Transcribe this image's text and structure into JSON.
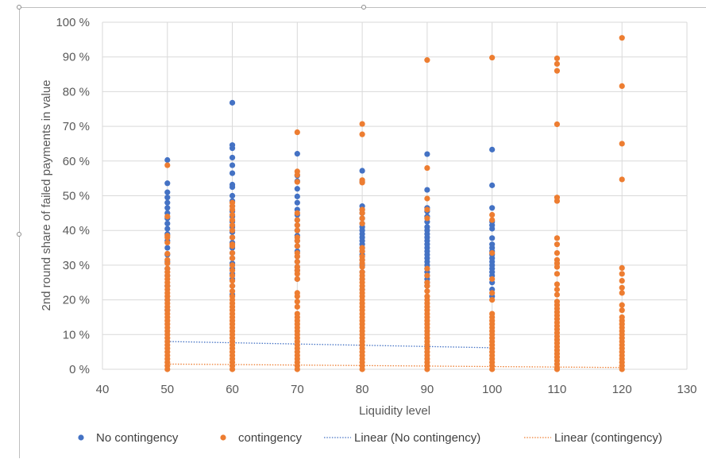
{
  "chart_data": {
    "type": "scatter",
    "title": "",
    "xlabel": "Liquidity level",
    "ylabel": "2nd round share of failed payments in value",
    "xlim": [
      40,
      130
    ],
    "ylim": [
      0,
      100
    ],
    "x_ticks": [
      40,
      50,
      60,
      70,
      80,
      90,
      100,
      110,
      120,
      130
    ],
    "y_ticks": [
      0,
      10,
      20,
      30,
      40,
      50,
      60,
      70,
      80,
      90,
      100
    ],
    "y_tick_labels": [
      "0 %",
      "10 %",
      "20 %",
      "30 %",
      "40 %",
      "50 %",
      "60 %",
      "70 %",
      "80 %",
      "90 %",
      "100 %"
    ],
    "x_tick_labels": [
      "40",
      "50",
      "60",
      "70",
      "80",
      "90",
      "100",
      "110",
      "120",
      "130"
    ],
    "grid": true,
    "legend_position": "bottom",
    "series": [
      {
        "name": "No contingency",
        "color": "#4472c4",
        "marker": "circle",
        "points": [
          {
            "x": 50,
            "y": [
              60.3,
              53.6,
              51.0,
              49.5,
              48.0,
              46.5,
              45.0,
              43.5,
              42.0,
              40.5,
              39.0,
              37.0,
              35.0,
              33.0,
              31.0,
              29.0,
              27.0,
              24.0,
              20.0,
              17.0
            ]
          },
          {
            "x": 60,
            "y": [
              76.8,
              64.6,
              63.7,
              61.0,
              58.8,
              56.5,
              53.2,
              52.5,
              50.0,
              48.5,
              47.0,
              45.5,
              44.0,
              42.5,
              41.0,
              39.5,
              38.0,
              36.5,
              35.0,
              33.5,
              32.0,
              30.5,
              29.0,
              27.5,
              26.0,
              24.0,
              21.5
            ]
          },
          {
            "x": 70,
            "y": [
              62.1,
              55.8,
              54.2,
              52.0,
              49.8,
              48.0,
              46.0,
              44.5,
              43.0,
              41.5,
              40.0,
              38.5,
              37.0,
              35.5,
              34.0,
              32.5,
              31.0,
              29.5,
              28.5,
              26.0
            ]
          },
          {
            "x": 80,
            "y": [
              57.2,
              54.0,
              47.0,
              46.0,
              45.0,
              43.5,
              42.0,
              41.0,
              40.0,
              39.0,
              38.0,
              37.0,
              36.0,
              35.0,
              34.0,
              33.0,
              31.5,
              30.0,
              28.0,
              26.0,
              23.0
            ]
          },
          {
            "x": 90,
            "y": [
              62.0,
              51.7,
              46.5,
              45.5,
              44.0,
              42.5,
              41.0,
              40.0,
              39.0,
              38.0,
              37.0,
              36.0,
              35.0,
              34.0,
              33.0,
              32.0,
              31.0,
              30.0,
              29.0,
              28.0,
              27.0,
              26.0,
              25.0,
              24.0
            ]
          },
          {
            "x": 100,
            "y": [
              63.3,
              53.0,
              46.5,
              42.5,
              41.5,
              40.5,
              37.8,
              36.0,
              35.0,
              34.0,
              33.0,
              32.0,
              31.0,
              30.0,
              29.0,
              28.0,
              27.0,
              25.0,
              23.0,
              21.0
            ]
          }
        ]
      },
      {
        "name": "contingency",
        "color": "#ed7d31",
        "marker": "circle",
        "points": [
          {
            "x": 50,
            "y": [
              58.8,
              44.0,
              38.5,
              38.0,
              36.5,
              33.3,
              31.5,
              30.5,
              29.0,
              28.0,
              27.0,
              26.0,
              25.0,
              24.0,
              23.0,
              22.0,
              21.0,
              20.0,
              19.0,
              18.0,
              17.0,
              16.0,
              15.0,
              14.0,
              13.0,
              12.0,
              11.0,
              10.0,
              9.0,
              8.0,
              7.0,
              6.0,
              5.0,
              4.0,
              3.0,
              2.0,
              1.0,
              0.0
            ]
          },
          {
            "x": 60,
            "y": [
              48.0,
              47.0,
              46.0,
              44.5,
              43.0,
              41.5,
              40.0,
              38.0,
              36.0,
              35.5,
              33.5,
              32.0,
              30.0,
              28.5,
              27.0,
              25.5,
              24.0,
              22.5,
              21.0,
              20.0,
              19.0,
              18.0,
              17.0,
              16.0,
              15.0,
              14.0,
              13.0,
              12.0,
              11.0,
              10.0,
              9.0,
              8.0,
              7.0,
              6.0,
              5.0,
              4.0,
              3.0,
              2.0,
              1.0,
              0.0
            ]
          },
          {
            "x": 70,
            "y": [
              68.3,
              57.0,
              56.0,
              54.0,
              45.0,
              43.0,
              41.5,
              40.0,
              38.0,
              37.0,
              35.5,
              33.5,
              32.5,
              31.0,
              29.5,
              28.5,
              27.5,
              26.0,
              22.0,
              21.0,
              19.5,
              18.0,
              16.0,
              15.0,
              14.0,
              13.0,
              12.0,
              11.0,
              10.0,
              9.0,
              8.0,
              7.0,
              6.0,
              5.0,
              4.0,
              3.0,
              2.0,
              1.0,
              0.0
            ]
          },
          {
            "x": 80,
            "y": [
              70.7,
              67.7,
              54.5,
              53.8,
              46.0,
              45.0,
              43.5,
              42.0,
              35.0,
              34.0,
              32.5,
              31.5,
              30.5,
              29.5,
              28.0,
              27.0,
              26.0,
              25.0,
              24.0,
              23.0,
              22.0,
              21.0,
              20.0,
              19.0,
              18.0,
              17.0,
              16.0,
              15.0,
              14.0,
              13.0,
              12.0,
              11.0,
              10.0,
              9.0,
              8.0,
              7.0,
              6.0,
              5.0,
              4.0,
              3.0,
              2.0,
              1.0,
              0.0
            ]
          },
          {
            "x": 90,
            "y": [
              89.1,
              58.0,
              49.2,
              46.0,
              43.5,
              29.0,
              27.0,
              25.0,
              24.0,
              22.5,
              21.0,
              20.0,
              19.0,
              18.0,
              17.0,
              16.0,
              15.0,
              14.0,
              13.0,
              12.0,
              11.0,
              10.0,
              9.0,
              8.0,
              7.0,
              6.0,
              5.0,
              4.0,
              3.0,
              2.0,
              1.0,
              0.0
            ]
          },
          {
            "x": 100,
            "y": [
              89.8,
              44.5,
              43.0,
              33.5,
              26.0,
              22.0,
              20.0,
              16.0,
              15.0,
              14.0,
              13.0,
              12.0,
              11.0,
              10.0,
              9.0,
              8.0,
              7.0,
              6.0,
              5.0,
              4.0,
              3.0,
              2.0,
              1.0,
              0.0
            ]
          },
          {
            "x": 110,
            "y": [
              89.6,
              88.0,
              86.0,
              70.6,
              49.5,
              48.5,
              37.8,
              36.0,
              33.5,
              31.5,
              30.5,
              29.5,
              27.5,
              24.5,
              23.0,
              21.5,
              19.5,
              18.5,
              17.5,
              16.5,
              15.5,
              14.5,
              13.5,
              12.5,
              11.5,
              10.5,
              9.5,
              8.5,
              7.5,
              6.5,
              5.5,
              4.5,
              3.5,
              2.5,
              1.5,
              0.5,
              0.0
            ]
          },
          {
            "x": 120,
            "y": [
              95.5,
              81.6,
              65.0,
              54.7,
              29.2,
              27.5,
              25.5,
              23.5,
              22.0,
              18.5,
              17.0,
              15.0,
              14.0,
              13.0,
              12.0,
              11.0,
              10.0,
              9.0,
              8.0,
              7.0,
              6.0,
              5.0,
              4.0,
              3.0,
              2.0,
              1.0,
              0.0
            ]
          }
        ]
      }
    ],
    "trendlines": [
      {
        "name": "Linear (No contingency)",
        "color": "#4472c4",
        "style": "dotted",
        "x": [
          50,
          100
        ],
        "y": [
          8.0,
          6.2
        ]
      },
      {
        "name": "Linear (contingency)",
        "color": "#ed7d31",
        "style": "dotted",
        "x": [
          50,
          120
        ],
        "y": [
          1.5,
          0.5
        ]
      }
    ]
  },
  "legend": {
    "items": [
      {
        "label": "No contingency",
        "kind": "marker",
        "color": "#4472c4"
      },
      {
        "label": "contingency",
        "kind": "marker",
        "color": "#ed7d31"
      },
      {
        "label": "Linear (No contingency)",
        "kind": "line",
        "color": "#4472c4"
      },
      {
        "label": "Linear (contingency)",
        "kind": "line",
        "color": "#ed7d31"
      }
    ]
  }
}
